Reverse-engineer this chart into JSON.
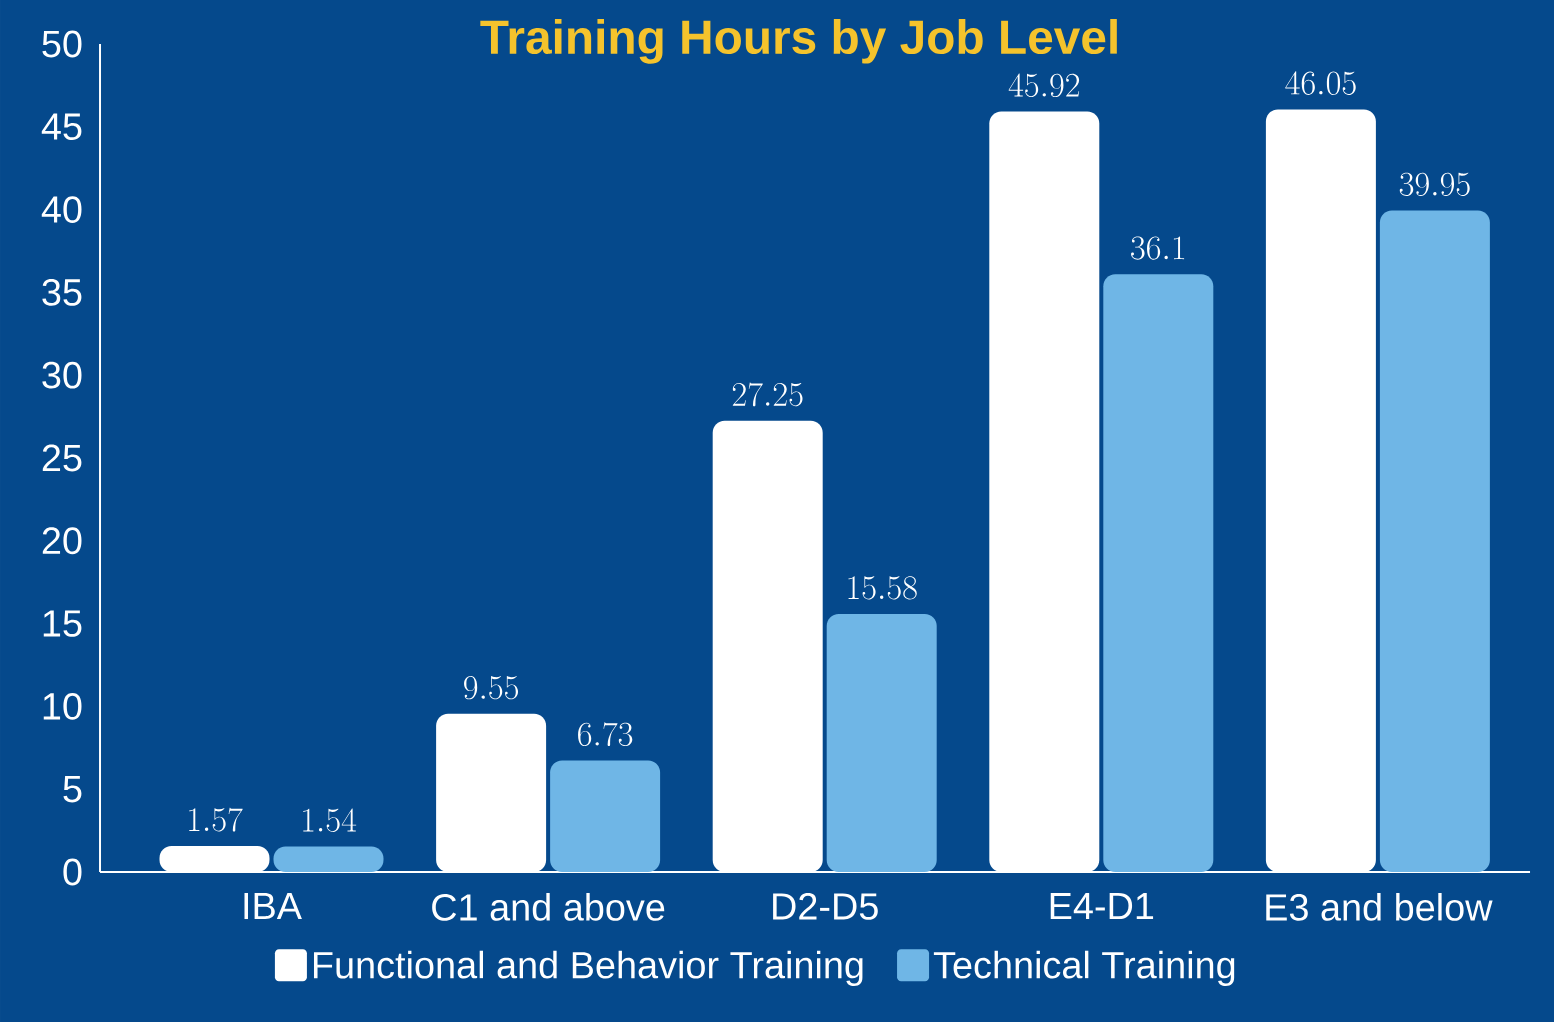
{
  "chart_data": {
    "type": "bar",
    "title": "Training Hours by Job Level",
    "categories": [
      "IBA",
      "C1 and above",
      "D2-D5",
      "E4-D1",
      "E3 and below"
    ],
    "series": [
      {
        "name": "Functional and Behavior Training",
        "color": "#ffffff",
        "values": [
          1.57,
          9.55,
          27.25,
          45.92,
          46.05
        ]
      },
      {
        "name": "Technical Training",
        "color": "#6fb6e6",
        "values": [
          1.54,
          6.73,
          15.58,
          36.1,
          39.95
        ]
      }
    ],
    "ylim": [
      0,
      50
    ],
    "yticks": [
      0,
      5,
      10,
      15,
      20,
      25,
      30,
      35,
      40,
      45,
      50
    ],
    "data_labels": true,
    "legend": "bottom",
    "grid": false
  }
}
